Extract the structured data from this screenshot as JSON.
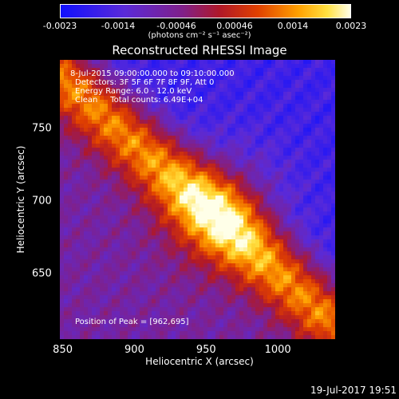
{
  "chart_data": {
    "type": "heatmap",
    "title": "Reconstructed RHESSI Image",
    "xlabel": "Heliocentric X (arcsec)",
    "ylabel": "Heliocentric Y (arcsec)",
    "xlim": [
      848,
      1040
    ],
    "ylim": [
      605,
      797
    ],
    "xticks": [
      "850",
      "900",
      "950",
      "1000"
    ],
    "xtick_values": [
      850,
      900,
      950,
      1000
    ],
    "yticks": [
      "750",
      "700",
      "650"
    ],
    "ytick_values": [
      750,
      700,
      650
    ],
    "colorbar": {
      "ticks": [
        "-0.0023",
        "-0.0014",
        "-0.00046",
        "0.00046",
        "0.0014",
        "0.0023"
      ],
      "units": "(photons cm⁻² s⁻¹ asec⁻²)",
      "range": [
        -0.0023,
        0.0023
      ]
    },
    "annotations": [
      "8-Jul-2015 09:00:00.000 to 09:10:00.000",
      "Detectors: 3F 5F 6F 7F 8F 9F, Att 0",
      "Energy Range: 6.0 - 12.0 keV",
      "Clean     Total counts: 6.49E+04"
    ],
    "peak_label": "Position of Peak = [962,695]",
    "peak": [
      962,
      695
    ],
    "emission_ridge": {
      "start": [
        850,
        785
      ],
      "end": [
        1035,
        620
      ],
      "peak_value": 0.0023
    }
  },
  "footer": {
    "date": "19-Jul-2017 19:51"
  },
  "colors": {
    "background": "#000000",
    "text": "#ffffff"
  }
}
